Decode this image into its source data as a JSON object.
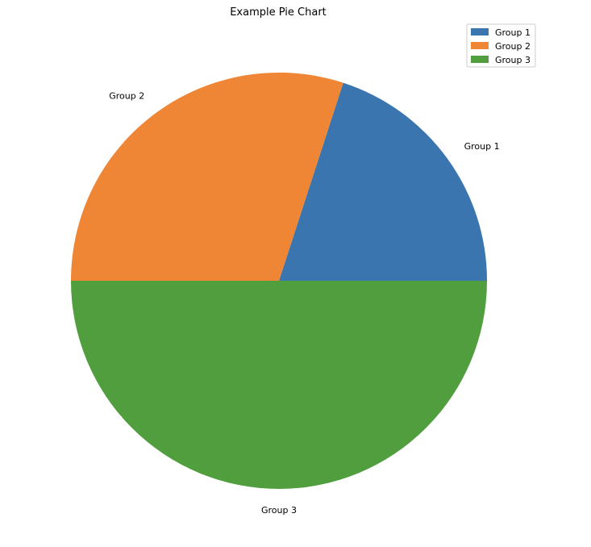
{
  "chart_data": {
    "type": "pie",
    "title": "Example Pie Chart",
    "slices": [
      {
        "label": "Group 1",
        "value": 20,
        "color": "#3a75af"
      },
      {
        "label": "Group 2",
        "value": 30,
        "color": "#ee8636"
      },
      {
        "label": "Group 3",
        "value": 50,
        "color": "#519e3e"
      }
    ],
    "start_angle_deg": 0,
    "direction": "counterclockwise",
    "legend": {
      "placement": "top-right",
      "entries": [
        "Group 1",
        "Group 2",
        "Group 3"
      ]
    }
  }
}
